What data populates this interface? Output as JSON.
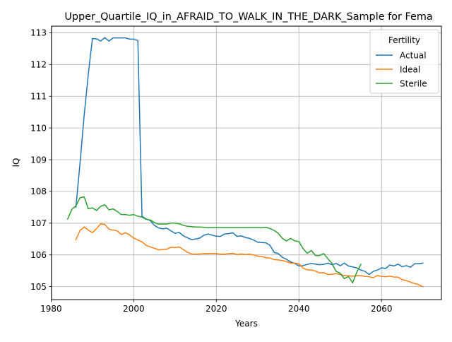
{
  "chart_data": {
    "type": "line",
    "title": "Upper_Quartile_IQ_in_AFRAID_TO_WALK_IN_THE_DARK_Sample for Fema",
    "xlabel": "Years",
    "ylabel": "IQ",
    "xlim": [
      1980.1,
      2074.5
    ],
    "ylim": [
      104.59,
      113.21
    ],
    "xticks": [
      1980,
      2000,
      2020,
      2040,
      2060
    ],
    "yticks": [
      105,
      106,
      107,
      108,
      109,
      110,
      111,
      112,
      113
    ],
    "grid": true,
    "legend": {
      "title": "Fertility",
      "position": "top-right"
    },
    "series": [
      {
        "name": "Actual",
        "color": "#1f77b4",
        "points": [
          [
            1986,
            107.5
          ],
          [
            1987,
            108.9
          ],
          [
            1988,
            110.4
          ],
          [
            1989,
            111.7
          ],
          [
            1990,
            112.82
          ],
          [
            1991,
            112.81
          ],
          [
            1992,
            112.74
          ],
          [
            1993,
            112.85
          ],
          [
            1994,
            112.74
          ],
          [
            1995,
            112.84
          ],
          [
            1996,
            112.84
          ],
          [
            1997,
            112.84
          ],
          [
            1998,
            112.84
          ],
          [
            1999,
            112.8
          ],
          [
            2000,
            112.8
          ],
          [
            2001,
            112.76
          ],
          [
            2002,
            107.22
          ],
          [
            2003,
            107.13
          ],
          [
            2004,
            107.08
          ],
          [
            2005,
            106.93
          ],
          [
            2006,
            106.85
          ],
          [
            2007,
            106.82
          ],
          [
            2008,
            106.84
          ],
          [
            2009,
            106.76
          ],
          [
            2010,
            106.68
          ],
          [
            2011,
            106.71
          ],
          [
            2012,
            106.6
          ],
          [
            2013,
            106.54
          ],
          [
            2014,
            106.48
          ],
          [
            2015,
            106.5
          ],
          [
            2016,
            106.53
          ],
          [
            2017,
            106.62
          ],
          [
            2018,
            106.66
          ],
          [
            2019,
            106.62
          ],
          [
            2020,
            106.59
          ],
          [
            2021,
            106.58
          ],
          [
            2022,
            106.66
          ],
          [
            2023,
            106.67
          ],
          [
            2024,
            106.7
          ],
          [
            2025,
            106.58
          ],
          [
            2026,
            106.6
          ],
          [
            2027,
            106.55
          ],
          [
            2028,
            106.52
          ],
          [
            2029,
            106.47
          ],
          [
            2030,
            106.4
          ],
          [
            2031,
            106.39
          ],
          [
            2032,
            106.38
          ],
          [
            2033,
            106.3
          ],
          [
            2034,
            106.08
          ],
          [
            2035,
            106.04
          ],
          [
            2036,
            105.92
          ],
          [
            2037,
            105.86
          ],
          [
            2038,
            105.78
          ],
          [
            2039,
            105.73
          ],
          [
            2040,
            105.65
          ],
          [
            2041,
            105.66
          ],
          [
            2042,
            105.7
          ],
          [
            2043,
            105.73
          ],
          [
            2044,
            105.71
          ],
          [
            2045,
            105.69
          ],
          [
            2046,
            105.7
          ],
          [
            2047,
            105.74
          ],
          [
            2048,
            105.69
          ],
          [
            2049,
            105.73
          ],
          [
            2050,
            105.66
          ],
          [
            2051,
            105.74
          ],
          [
            2052,
            105.65
          ],
          [
            2053,
            105.62
          ],
          [
            2054,
            105.59
          ],
          [
            2055,
            105.52
          ],
          [
            2056,
            105.48
          ],
          [
            2057,
            105.38
          ],
          [
            2058,
            105.48
          ],
          [
            2059,
            105.52
          ],
          [
            2060,
            105.59
          ],
          [
            2061,
            105.57
          ],
          [
            2062,
            105.68
          ],
          [
            2063,
            105.65
          ],
          [
            2064,
            105.71
          ],
          [
            2065,
            105.63
          ],
          [
            2066,
            105.66
          ],
          [
            2067,
            105.61
          ],
          [
            2068,
            105.72
          ],
          [
            2069,
            105.72
          ],
          [
            2070,
            105.74
          ]
        ]
      },
      {
        "name": "Ideal",
        "color": "#ff7f0e",
        "points": [
          [
            1986,
            106.48
          ],
          [
            1987,
            106.77
          ],
          [
            1988,
            106.88
          ],
          [
            1989,
            106.78
          ],
          [
            1990,
            106.7
          ],
          [
            1991,
            106.83
          ],
          [
            1992,
            106.98
          ],
          [
            1993,
            106.96
          ],
          [
            1994,
            106.81
          ],
          [
            1995,
            106.78
          ],
          [
            1996,
            106.76
          ],
          [
            1997,
            106.64
          ],
          [
            1998,
            106.7
          ],
          [
            1999,
            106.63
          ],
          [
            2000,
            106.53
          ],
          [
            2001,
            106.47
          ],
          [
            2002,
            106.41
          ],
          [
            2003,
            106.3
          ],
          [
            2004,
            106.25
          ],
          [
            2005,
            106.21
          ],
          [
            2006,
            106.16
          ],
          [
            2007,
            106.17
          ],
          [
            2008,
            106.18
          ],
          [
            2009,
            106.24
          ],
          [
            2010,
            106.23
          ],
          [
            2011,
            106.25
          ],
          [
            2012,
            106.17
          ],
          [
            2013,
            106.08
          ],
          [
            2014,
            106.03
          ],
          [
            2015,
            106.02
          ],
          [
            2016,
            106.03
          ],
          [
            2017,
            106.04
          ],
          [
            2018,
            106.04
          ],
          [
            2019,
            106.05
          ],
          [
            2020,
            106.04
          ],
          [
            2021,
            106.02
          ],
          [
            2022,
            106.02
          ],
          [
            2023,
            106.04
          ],
          [
            2024,
            106.05
          ],
          [
            2025,
            106.01
          ],
          [
            2026,
            106.03
          ],
          [
            2027,
            106.01
          ],
          [
            2028,
            106.02
          ],
          [
            2029,
            106.0
          ],
          [
            2030,
            105.96
          ],
          [
            2031,
            105.95
          ],
          [
            2032,
            105.91
          ],
          [
            2033,
            105.9
          ],
          [
            2034,
            105.85
          ],
          [
            2035,
            105.84
          ],
          [
            2036,
            105.82
          ],
          [
            2037,
            105.79
          ],
          [
            2038,
            105.74
          ],
          [
            2039,
            105.74
          ],
          [
            2040,
            105.72
          ],
          [
            2041,
            105.58
          ],
          [
            2042,
            105.53
          ],
          [
            2043,
            105.52
          ],
          [
            2044,
            105.49
          ],
          [
            2045,
            105.43
          ],
          [
            2046,
            105.44
          ],
          [
            2047,
            105.38
          ],
          [
            2048,
            105.39
          ],
          [
            2049,
            105.41
          ],
          [
            2050,
            105.38
          ],
          [
            2051,
            105.35
          ],
          [
            2052,
            105.34
          ],
          [
            2053,
            105.33
          ],
          [
            2054,
            105.34
          ],
          [
            2055,
            105.35
          ],
          [
            2056,
            105.32
          ],
          [
            2057,
            105.31
          ],
          [
            2058,
            105.28
          ],
          [
            2059,
            105.35
          ],
          [
            2060,
            105.32
          ],
          [
            2061,
            105.31
          ],
          [
            2062,
            105.33
          ],
          [
            2063,
            105.3
          ],
          [
            2064,
            105.3
          ],
          [
            2065,
            105.22
          ],
          [
            2066,
            105.19
          ],
          [
            2067,
            105.14
          ],
          [
            2068,
            105.1
          ],
          [
            2069,
            105.06
          ],
          [
            2070,
            105.0
          ]
        ]
      },
      {
        "name": "Sterile",
        "color": "#2ca02c",
        "points": [
          [
            1984,
            107.13
          ],
          [
            1985,
            107.43
          ],
          [
            1986,
            107.55
          ],
          [
            1987,
            107.8
          ],
          [
            1988,
            107.83
          ],
          [
            1989,
            107.45
          ],
          [
            1990,
            107.48
          ],
          [
            1991,
            107.4
          ],
          [
            1992,
            107.53
          ],
          [
            1993,
            107.58
          ],
          [
            1994,
            107.42
          ],
          [
            1995,
            107.45
          ],
          [
            1996,
            107.37
          ],
          [
            1997,
            107.27
          ],
          [
            1998,
            107.27
          ],
          [
            1999,
            107.25
          ],
          [
            2000,
            107.27
          ],
          [
            2001,
            107.22
          ],
          [
            2002,
            107.19
          ],
          [
            2003,
            107.12
          ],
          [
            2004,
            107.1
          ],
          [
            2005,
            107.02
          ],
          [
            2006,
            106.97
          ],
          [
            2007,
            106.97
          ],
          [
            2008,
            106.97
          ],
          [
            2009,
            107.0
          ],
          [
            2010,
            107.0
          ],
          [
            2011,
            106.98
          ],
          [
            2012,
            106.93
          ],
          [
            2013,
            106.9
          ],
          [
            2014,
            106.89
          ],
          [
            2015,
            106.88
          ],
          [
            2016,
            106.88
          ],
          [
            2017,
            106.87
          ],
          [
            2018,
            106.86
          ],
          [
            2019,
            106.86
          ],
          [
            2020,
            106.86
          ],
          [
            2021,
            106.86
          ],
          [
            2022,
            106.86
          ],
          [
            2023,
            106.86
          ],
          [
            2024,
            106.86
          ],
          [
            2025,
            106.86
          ],
          [
            2026,
            106.86
          ],
          [
            2027,
            106.86
          ],
          [
            2028,
            106.86
          ],
          [
            2029,
            106.86
          ],
          [
            2030,
            106.86
          ],
          [
            2031,
            106.86
          ],
          [
            2032,
            106.87
          ],
          [
            2033,
            106.83
          ],
          [
            2034,
            106.77
          ],
          [
            2035,
            106.68
          ],
          [
            2036,
            106.52
          ],
          [
            2037,
            106.44
          ],
          [
            2038,
            106.52
          ],
          [
            2039,
            106.44
          ],
          [
            2040,
            106.42
          ],
          [
            2041,
            106.2
          ],
          [
            2042,
            106.05
          ],
          [
            2043,
            106.14
          ],
          [
            2044,
            105.98
          ],
          [
            2045,
            105.98
          ],
          [
            2046,
            106.04
          ],
          [
            2047,
            105.88
          ],
          [
            2048,
            105.73
          ],
          [
            2049,
            105.48
          ],
          [
            2050,
            105.42
          ],
          [
            2051,
            105.25
          ],
          [
            2052,
            105.32
          ],
          [
            2053,
            105.12
          ],
          [
            2054,
            105.45
          ],
          [
            2055,
            105.7
          ]
        ]
      }
    ]
  }
}
